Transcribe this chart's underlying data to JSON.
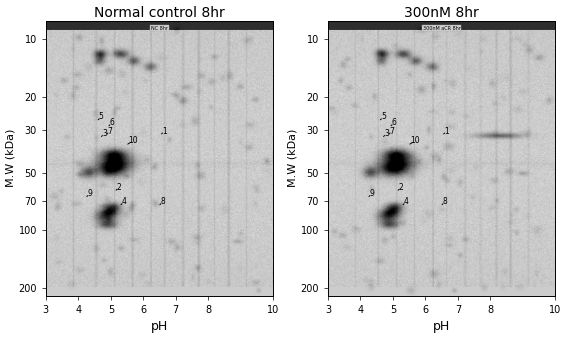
{
  "title_left": "Normal control 8hr",
  "title_right": "300nM 8hr",
  "xlabel": "pH",
  "ylabel": "M.W (kDa)",
  "ph_ticks": [
    3.0,
    4.0,
    5.0,
    6.0,
    7.0,
    8.0,
    10.0
  ],
  "mw_ticks": [
    10,
    20,
    30,
    50,
    70,
    100,
    200
  ],
  "subtitle_left": "NC 8hr",
  "subtitle_right": "300nM aCR 8hr",
  "spots": [
    {
      "label": "1",
      "ph": 6.5,
      "mw": 32
    },
    {
      "label": "2",
      "ph": 5.1,
      "mw": 63
    },
    {
      "label": "3",
      "ph": 4.65,
      "mw": 33
    },
    {
      "label": "4",
      "ph": 5.25,
      "mw": 75
    },
    {
      "label": "5",
      "ph": 4.55,
      "mw": 27
    },
    {
      "label": "6",
      "ph": 4.88,
      "mw": 29
    },
    {
      "label": "7",
      "ph": 4.82,
      "mw": 32
    },
    {
      "label": "8",
      "ph": 6.45,
      "mw": 75
    },
    {
      "label": "9",
      "ph": 4.2,
      "mw": 68
    },
    {
      "label": "10",
      "ph": 5.45,
      "mw": 36
    }
  ],
  "major_spots": [
    {
      "ph": 5.0,
      "mw": 48,
      "sx": 14,
      "sy": 5,
      "intensity": 0.6
    },
    {
      "ph": 5.15,
      "mw": 44,
      "sx": 16,
      "sy": 6,
      "intensity": 0.65
    },
    {
      "ph": 5.1,
      "mw": 40,
      "sx": 12,
      "sy": 4,
      "intensity": 0.6
    },
    {
      "ph": 4.3,
      "mw": 50,
      "sx": 7,
      "sy": 4,
      "intensity": 0.45
    },
    {
      "ph": 4.85,
      "mw": 85,
      "sx": 10,
      "sy": 4,
      "intensity": 0.55
    },
    {
      "ph": 4.95,
      "mw": 80,
      "sx": 9,
      "sy": 3,
      "intensity": 0.5
    },
    {
      "ph": 5.05,
      "mw": 75,
      "sx": 8,
      "sy": 3,
      "intensity": 0.5
    },
    {
      "ph": 4.9,
      "mw": 93,
      "sx": 9,
      "sy": 3,
      "intensity": 0.45
    },
    {
      "ph": 5.3,
      "mw": 12,
      "sx": 7,
      "sy": 3,
      "intensity": 0.5
    },
    {
      "ph": 4.68,
      "mw": 12,
      "sx": 6,
      "sy": 3,
      "intensity": 0.55
    },
    {
      "ph": 5.7,
      "mw": 13,
      "sx": 6,
      "sy": 3,
      "intensity": 0.4
    },
    {
      "ph": 6.2,
      "mw": 14,
      "sx": 6,
      "sy": 3,
      "intensity": 0.35
    },
    {
      "ph": 4.65,
      "mw": 13,
      "sx": 5,
      "sy": 3,
      "intensity": 0.35
    }
  ],
  "right_extra_spots": [
    {
      "ph": 8.25,
      "mw": 32,
      "sx": 22,
      "sy": 2,
      "intensity": 0.4
    }
  ],
  "ph_min": 3.0,
  "ph_max": 10.0,
  "mw_min_log": 0.903,
  "mw_max_log": 2.342
}
